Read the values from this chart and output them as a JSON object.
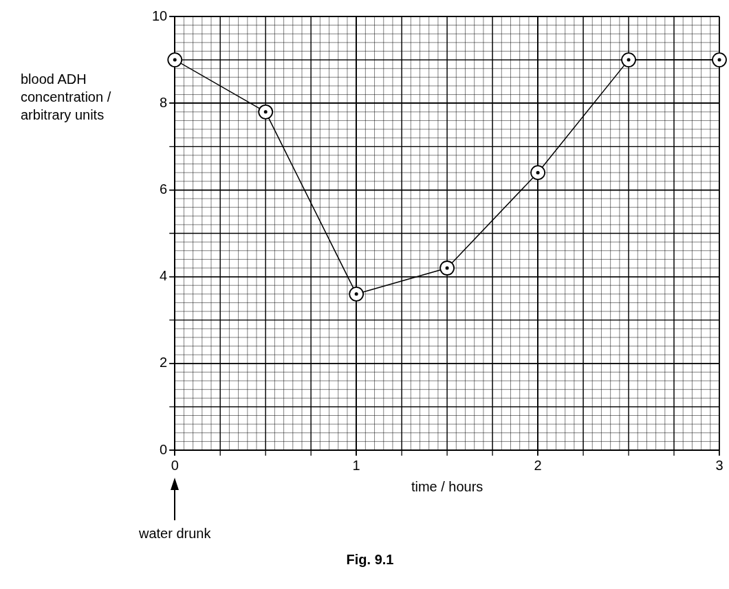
{
  "chart_data": {
    "type": "line",
    "xlabel": "time / hours",
    "ylabel": "blood ADH concentration / arbitrary units",
    "x": [
      0,
      0.5,
      1,
      1.5,
      2,
      2.5,
      3
    ],
    "series": [
      {
        "color": "#000000",
        "values": [
          9,
          7.8,
          3.6,
          4.2,
          6.4,
          9,
          9
        ]
      }
    ],
    "xlim": [
      0,
      3
    ],
    "xticks": [
      0,
      1,
      2,
      3
    ],
    "ylim": [
      0,
      10
    ],
    "yticks": [
      0,
      2,
      4,
      6,
      8,
      10
    ],
    "grid": true,
    "legend": false,
    "marker": "circle",
    "line_style": "solid",
    "annotations": [
      "water drunk",
      "Fig. 9.1"
    ]
  }
}
